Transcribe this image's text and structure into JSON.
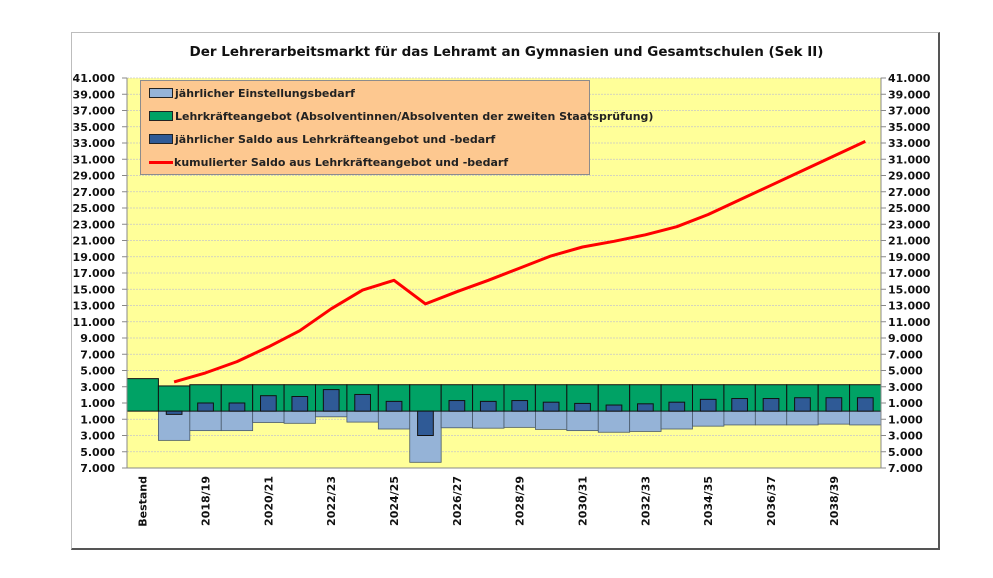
{
  "chart_data": {
    "type": "bar",
    "title": "Der Lehrerarbeitsmarkt für das Lehramt an Gymnasien und Gesamtschulen (Sek II)",
    "categories": [
      "Bestand",
      "",
      "2018/19",
      "",
      "2020/21",
      "",
      "2022/23",
      "",
      "2024/25",
      "",
      "2026/27",
      "",
      "2028/29",
      "",
      "2030/31",
      "",
      "2032/33",
      "",
      "2034/35",
      "",
      "2036/37",
      "",
      "2038/39",
      ""
    ],
    "ylim": [
      -7000,
      41000
    ],
    "y_tick_labels": [
      "41.000",
      "39.000",
      "37.000",
      "35.000",
      "33.000",
      "31.000",
      "29.000",
      "27.000",
      "25.000",
      "23.000",
      "21.000",
      "19.000",
      "17.000",
      "15.000",
      "13.000",
      "11.000",
      "9.000",
      "7.000",
      "5.000",
      "3.000",
      "1.000",
      "1.000",
      "3.000",
      "5.000",
      "7.000"
    ],
    "y_tick_values": [
      41000,
      39000,
      37000,
      35000,
      33000,
      31000,
      29000,
      27000,
      25000,
      23000,
      21000,
      19000,
      17000,
      15000,
      13000,
      11000,
      9000,
      7000,
      5000,
      3000,
      1000,
      -1000,
      -3000,
      -5000,
      -7000
    ],
    "series": [
      {
        "name": "jährlicher Einstellungsbedarf",
        "kind": "bar",
        "color": "#95b3d7",
        "values": [
          null,
          -3600,
          -2400,
          -2400,
          -1400,
          -1500,
          -700,
          -1350,
          -2200,
          -6300,
          -2050,
          -2100,
          -2000,
          -2250,
          -2400,
          -2600,
          -2500,
          -2200,
          -1850,
          -1700,
          -1700,
          -1700,
          -1600,
          -1700
        ]
      },
      {
        "name": "Lehrkräfteangebot (Absolventinnen/Absolventen der zweiten Staatsprüfung)",
        "kind": "bar",
        "color": "#00a265",
        "values": [
          4000,
          3100,
          3250,
          3250,
          3250,
          3250,
          3250,
          3250,
          3250,
          3250,
          3250,
          3250,
          3250,
          3250,
          3250,
          3250,
          3250,
          3250,
          3250,
          3250,
          3250,
          3250,
          3250,
          3250
        ]
      },
      {
        "name": "jährlicher Saldo aus Lehrkräfteangebot und -bedarf",
        "kind": "bar",
        "color": "#2f5a96",
        "values": [
          null,
          -400,
          1000,
          1000,
          1900,
          1800,
          2650,
          2050,
          1200,
          -3000,
          1300,
          1200,
          1300,
          1100,
          950,
          750,
          900,
          1100,
          1450,
          1550,
          1550,
          1650,
          1650,
          1650
        ]
      },
      {
        "name": "kumulierter Saldo aus Lehrkräfteangebot und -bedarf",
        "kind": "line",
        "color": "#ff0000",
        "values": [
          null,
          3600,
          4700,
          6100,
          7900,
          9900,
          12600,
          14900,
          16100,
          13200,
          14700,
          16100,
          17600,
          19100,
          20200,
          20900,
          21700,
          22700,
          24200,
          26000,
          27800,
          29600,
          31400,
          33200
        ]
      }
    ],
    "background_color": "#ffff99",
    "legend_position": "top-left"
  }
}
